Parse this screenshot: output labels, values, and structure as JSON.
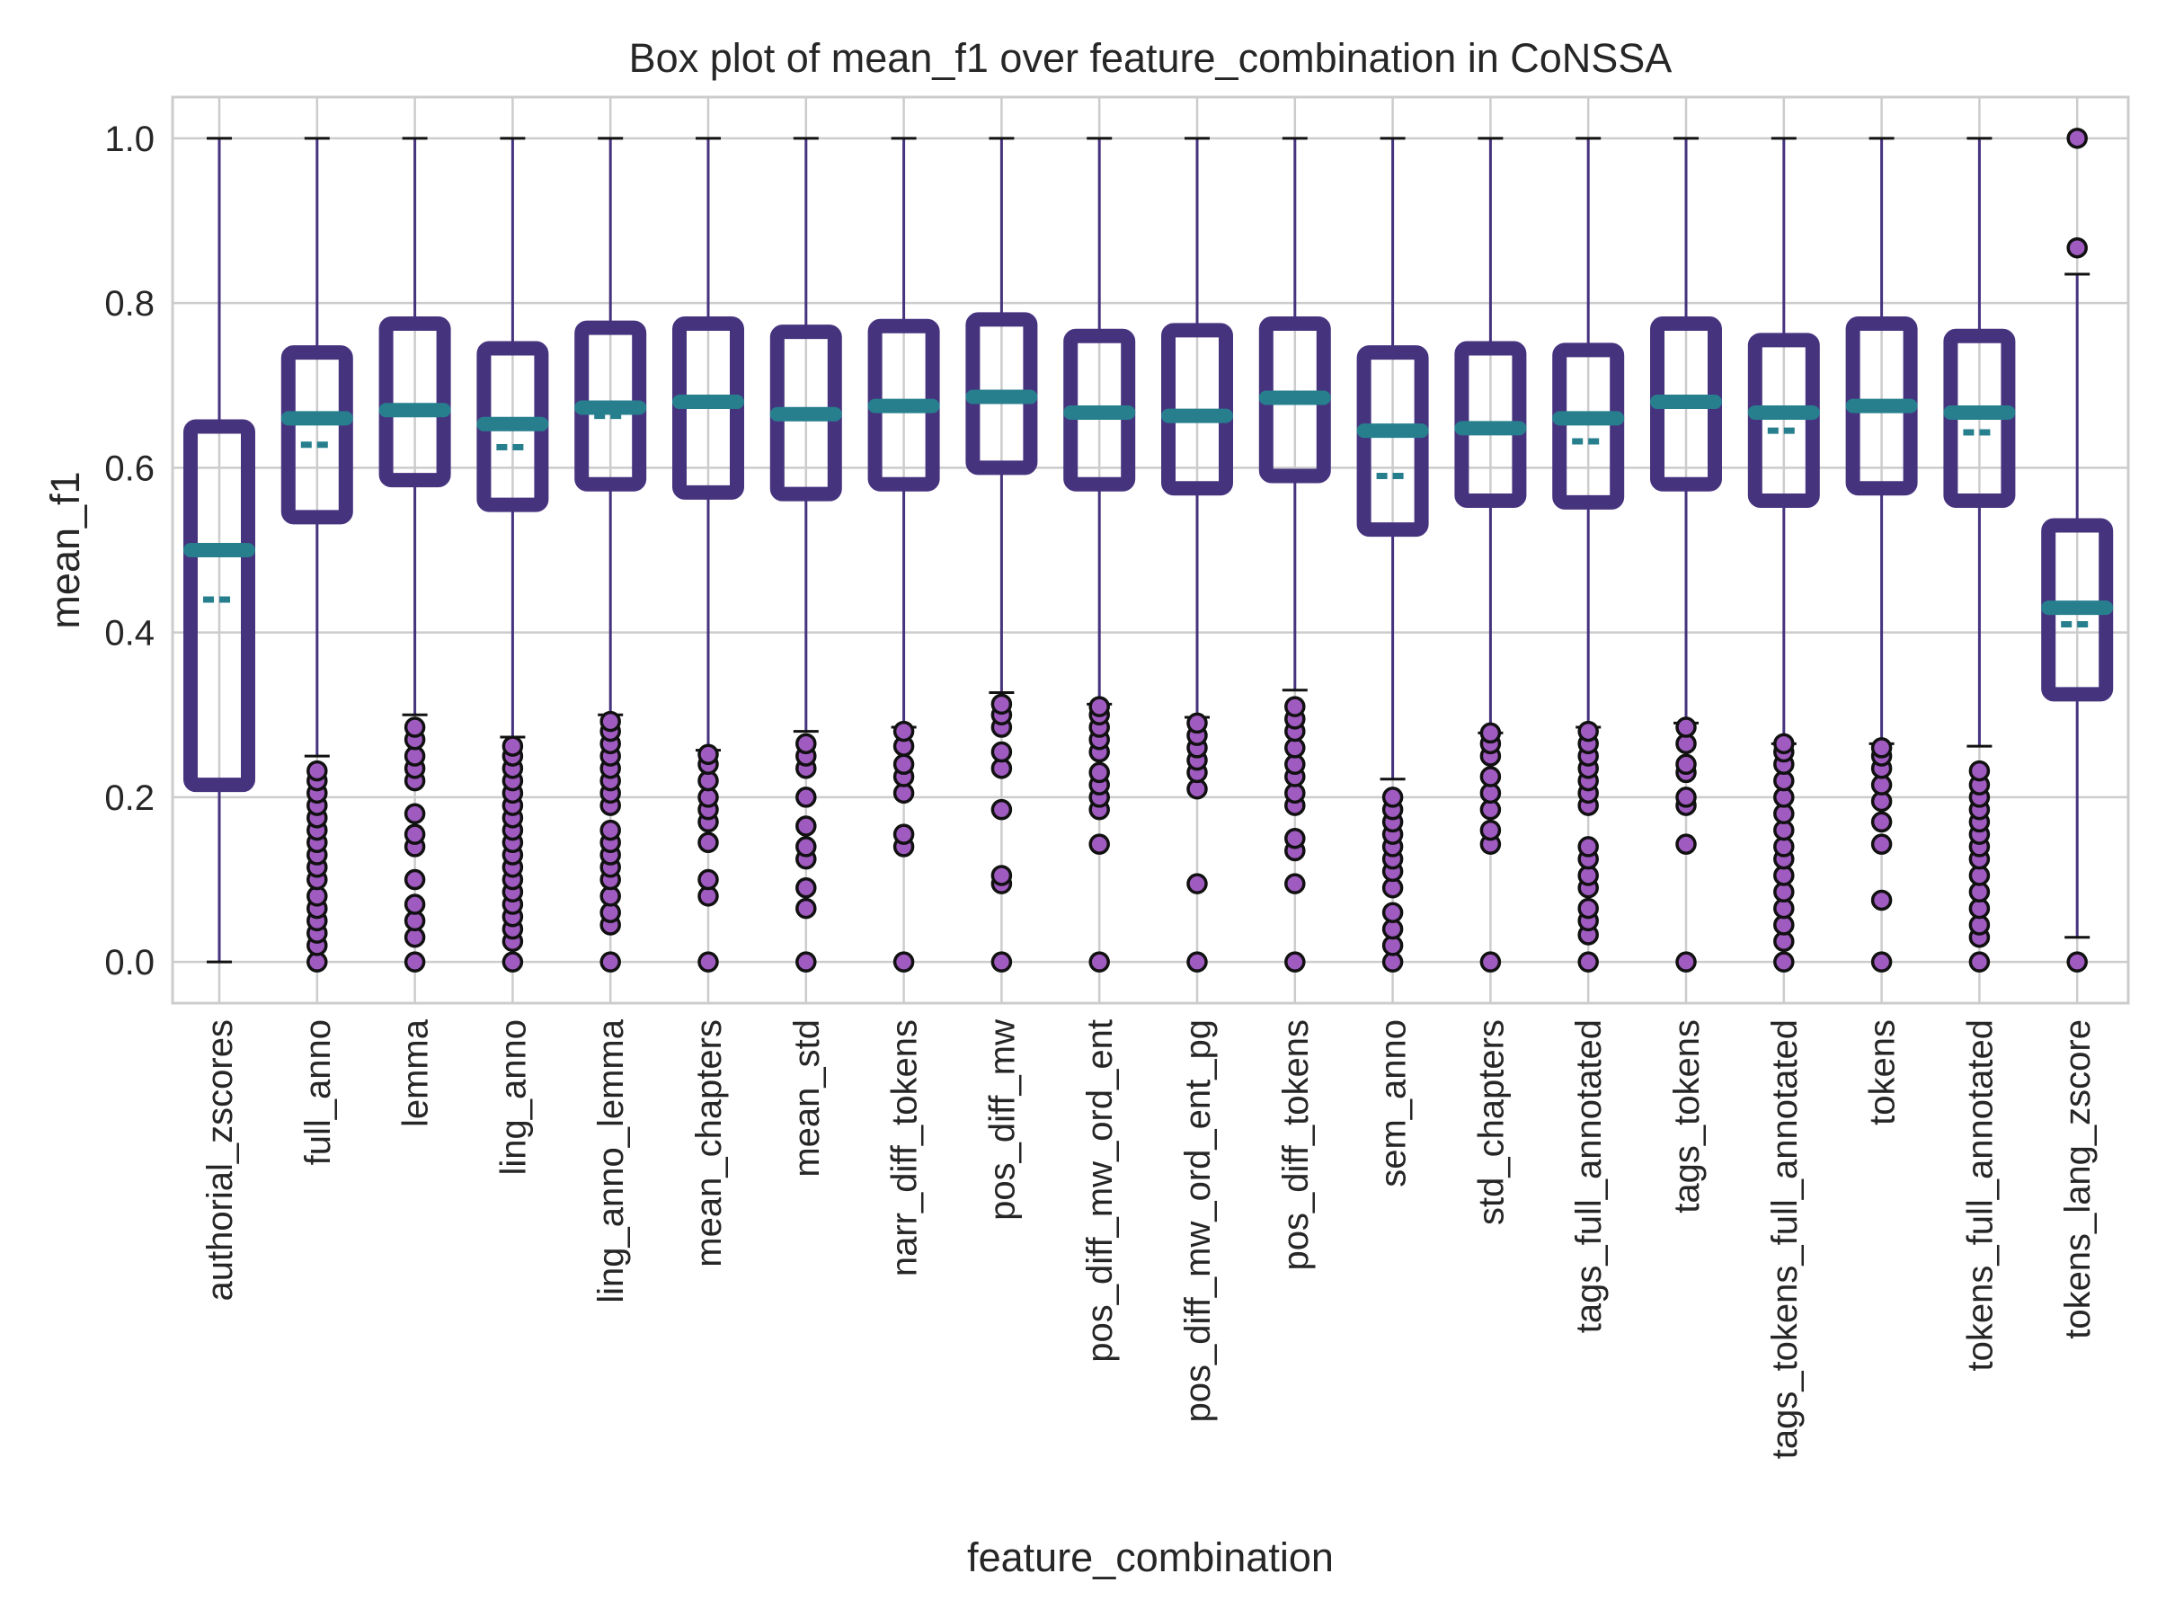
{
  "chart_data": {
    "type": "box",
    "title": "Box plot of mean_f1 over feature_combination in CoNSSA",
    "xlabel": "feature_combination",
    "ylabel": "mean_f1",
    "ylim": [
      -0.05,
      1.05
    ],
    "yticks": [
      0.0,
      0.2,
      0.4,
      0.6,
      0.8,
      1.0
    ],
    "ytick_labels": [
      "0.0",
      "0.2",
      "0.4",
      "0.6",
      "0.8",
      "1.0"
    ],
    "grid": true,
    "legend": "none",
    "colors": {
      "box": "#46337e",
      "whisker": "#46337e",
      "median": "#277f8e",
      "mean": "#277f8e",
      "flier_fill": "#a05bc0",
      "flier_edge": "#111111",
      "grid": "#cccccc",
      "axes_edge": "#cccccc",
      "text": "#262626"
    },
    "categories": [
      "authorial_zscores",
      "full_anno",
      "lemma",
      "ling_anno",
      "ling_anno_lemma",
      "mean_chapters",
      "mean_std",
      "narr_diff_tokens",
      "pos_diff_mw",
      "pos_diff_mw_ord_ent",
      "pos_diff_mw_ord_ent_pg",
      "pos_diff_tokens",
      "sem_anno",
      "std_chapters",
      "tags_full_annotated",
      "tags_tokens",
      "tags_tokens_full_annotated",
      "tokens",
      "tokens_full_annotated",
      "tokens_lang_zscore"
    ],
    "boxes": [
      {
        "whislo": 0.0,
        "q1": 0.215,
        "med": 0.5,
        "mean": 0.44,
        "q3": 0.65,
        "whishi": 1.0,
        "fliers": []
      },
      {
        "whislo": 0.25,
        "q1": 0.54,
        "med": 0.66,
        "mean": 0.628,
        "q3": 0.74,
        "whishi": 1.0,
        "fliers": [
          0.0,
          0.02,
          0.035,
          0.05,
          0.065,
          0.08,
          0.1,
          0.115,
          0.13,
          0.145,
          0.16,
          0.175,
          0.19,
          0.205,
          0.22,
          0.232
        ]
      },
      {
        "whislo": 0.3,
        "q1": 0.585,
        "med": 0.67,
        "mean": 0.668,
        "q3": 0.775,
        "whishi": 1.0,
        "fliers": [
          0.0,
          0.03,
          0.05,
          0.07,
          0.1,
          0.14,
          0.155,
          0.18,
          0.22,
          0.235,
          0.25,
          0.27,
          0.285
        ]
      },
      {
        "whislo": 0.273,
        "q1": 0.555,
        "med": 0.653,
        "mean": 0.625,
        "q3": 0.745,
        "whishi": 1.0,
        "fliers": [
          0.0,
          0.025,
          0.04,
          0.055,
          0.07,
          0.085,
          0.1,
          0.115,
          0.13,
          0.145,
          0.16,
          0.175,
          0.19,
          0.205,
          0.22,
          0.235,
          0.25,
          0.262
        ]
      },
      {
        "whislo": 0.3,
        "q1": 0.58,
        "med": 0.673,
        "mean": 0.663,
        "q3": 0.77,
        "whishi": 1.0,
        "fliers": [
          0.0,
          0.045,
          0.06,
          0.08,
          0.1,
          0.115,
          0.13,
          0.145,
          0.16,
          0.19,
          0.205,
          0.22,
          0.235,
          0.25,
          0.265,
          0.28,
          0.292
        ]
      },
      {
        "whislo": 0.257,
        "q1": 0.57,
        "med": 0.68,
        "mean": 0.68,
        "q3": 0.775,
        "whishi": 1.0,
        "fliers": [
          0.0,
          0.08,
          0.1,
          0.145,
          0.17,
          0.185,
          0.2,
          0.22,
          0.24,
          0.252
        ]
      },
      {
        "whislo": 0.28,
        "q1": 0.568,
        "med": 0.665,
        "mean": 0.665,
        "q3": 0.765,
        "whishi": 1.0,
        "fliers": [
          0.0,
          0.065,
          0.09,
          0.125,
          0.14,
          0.165,
          0.2,
          0.235,
          0.25,
          0.265
        ]
      },
      {
        "whislo": 0.285,
        "q1": 0.58,
        "med": 0.675,
        "mean": 0.675,
        "q3": 0.772,
        "whishi": 1.0,
        "fliers": [
          0.0,
          0.14,
          0.155,
          0.205,
          0.225,
          0.24,
          0.262,
          0.28
        ]
      },
      {
        "whislo": 0.327,
        "q1": 0.6,
        "med": 0.686,
        "mean": 0.686,
        "q3": 0.78,
        "whishi": 1.0,
        "fliers": [
          0.0,
          0.095,
          0.105,
          0.185,
          0.235,
          0.255,
          0.285,
          0.3,
          0.313
        ]
      },
      {
        "whislo": 0.313,
        "q1": 0.58,
        "med": 0.667,
        "mean": 0.667,
        "q3": 0.76,
        "whishi": 1.0,
        "fliers": [
          0.0,
          0.143,
          0.185,
          0.2,
          0.215,
          0.23,
          0.255,
          0.27,
          0.285,
          0.3,
          0.31
        ]
      },
      {
        "whislo": 0.297,
        "q1": 0.575,
        "med": 0.663,
        "mean": 0.663,
        "q3": 0.767,
        "whishi": 1.0,
        "fliers": [
          0.0,
          0.095,
          0.21,
          0.23,
          0.245,
          0.26,
          0.275,
          0.29
        ]
      },
      {
        "whislo": 0.33,
        "q1": 0.59,
        "med": 0.685,
        "mean": 0.685,
        "q3": 0.775,
        "whishi": 1.0,
        "fliers": [
          0.0,
          0.095,
          0.135,
          0.15,
          0.19,
          0.205,
          0.225,
          0.24,
          0.26,
          0.28,
          0.295,
          0.31
        ]
      },
      {
        "whislo": 0.222,
        "q1": 0.525,
        "med": 0.645,
        "mean": 0.59,
        "q3": 0.74,
        "whishi": 1.0,
        "fliers": [
          0.0,
          0.02,
          0.04,
          0.06,
          0.09,
          0.11,
          0.125,
          0.14,
          0.155,
          0.17,
          0.185,
          0.2
        ]
      },
      {
        "whislo": 0.278,
        "q1": 0.56,
        "med": 0.648,
        "mean": 0.648,
        "q3": 0.745,
        "whishi": 1.0,
        "fliers": [
          0.0,
          0.143,
          0.16,
          0.185,
          0.205,
          0.225,
          0.25,
          0.265,
          0.278
        ]
      },
      {
        "whislo": 0.285,
        "q1": 0.558,
        "med": 0.66,
        "mean": 0.632,
        "q3": 0.743,
        "whishi": 1.0,
        "fliers": [
          0.0,
          0.033,
          0.05,
          0.065,
          0.09,
          0.105,
          0.125,
          0.14,
          0.19,
          0.205,
          0.22,
          0.235,
          0.25,
          0.265,
          0.28
        ]
      },
      {
        "whislo": 0.29,
        "q1": 0.58,
        "med": 0.68,
        "mean": 0.68,
        "q3": 0.775,
        "whishi": 1.0,
        "fliers": [
          0.0,
          0.143,
          0.19,
          0.2,
          0.23,
          0.24,
          0.265,
          0.285
        ]
      },
      {
        "whislo": 0.265,
        "q1": 0.56,
        "med": 0.667,
        "mean": 0.645,
        "q3": 0.755,
        "whishi": 1.0,
        "fliers": [
          0.0,
          0.025,
          0.045,
          0.065,
          0.085,
          0.105,
          0.125,
          0.14,
          0.16,
          0.18,
          0.2,
          0.22,
          0.24,
          0.255,
          0.265
        ]
      },
      {
        "whislo": 0.265,
        "q1": 0.575,
        "med": 0.675,
        "mean": 0.675,
        "q3": 0.775,
        "whishi": 1.0,
        "fliers": [
          0.0,
          0.075,
          0.143,
          0.17,
          0.195,
          0.215,
          0.235,
          0.25,
          0.26
        ]
      },
      {
        "whislo": 0.262,
        "q1": 0.56,
        "med": 0.667,
        "mean": 0.643,
        "q3": 0.76,
        "whishi": 1.0,
        "fliers": [
          0.0,
          0.03,
          0.045,
          0.065,
          0.085,
          0.105,
          0.125,
          0.14,
          0.155,
          0.17,
          0.185,
          0.2,
          0.215,
          0.232
        ]
      },
      {
        "whislo": 0.03,
        "q1": 0.325,
        "med": 0.43,
        "mean": 0.41,
        "q3": 0.53,
        "whishi": 0.835,
        "fliers": [
          0.0,
          0.867,
          1.0
        ]
      }
    ]
  }
}
